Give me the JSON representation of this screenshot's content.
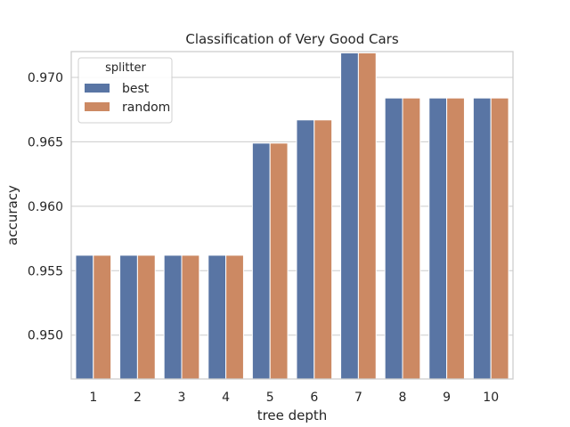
{
  "chart_data": {
    "type": "bar",
    "title": "Classification of Very Good Cars",
    "xlabel": "tree depth",
    "ylabel": "accuracy",
    "categories": [
      "1",
      "2",
      "3",
      "4",
      "5",
      "6",
      "7",
      "8",
      "9",
      "10"
    ],
    "ylim": [
      0.9466,
      0.972
    ],
    "yticks": [
      0.95,
      0.955,
      0.96,
      0.965,
      0.97
    ],
    "ytick_labels": [
      "0.950",
      "0.955",
      "0.960",
      "0.965",
      "0.970"
    ],
    "grid": true,
    "legend": {
      "title": "splitter",
      "position": "top-left"
    },
    "series": [
      {
        "name": "best",
        "color": "#5975a4",
        "values": [
          0.9562,
          0.9562,
          0.9562,
          0.9562,
          0.9649,
          0.9667,
          0.9719,
          0.9684,
          0.9684,
          0.9684
        ]
      },
      {
        "name": "random",
        "color": "#cc8963",
        "values": [
          0.9562,
          0.9562,
          0.9562,
          0.9562,
          0.9649,
          0.9667,
          0.9719,
          0.9684,
          0.9684,
          0.9684
        ]
      }
    ]
  }
}
